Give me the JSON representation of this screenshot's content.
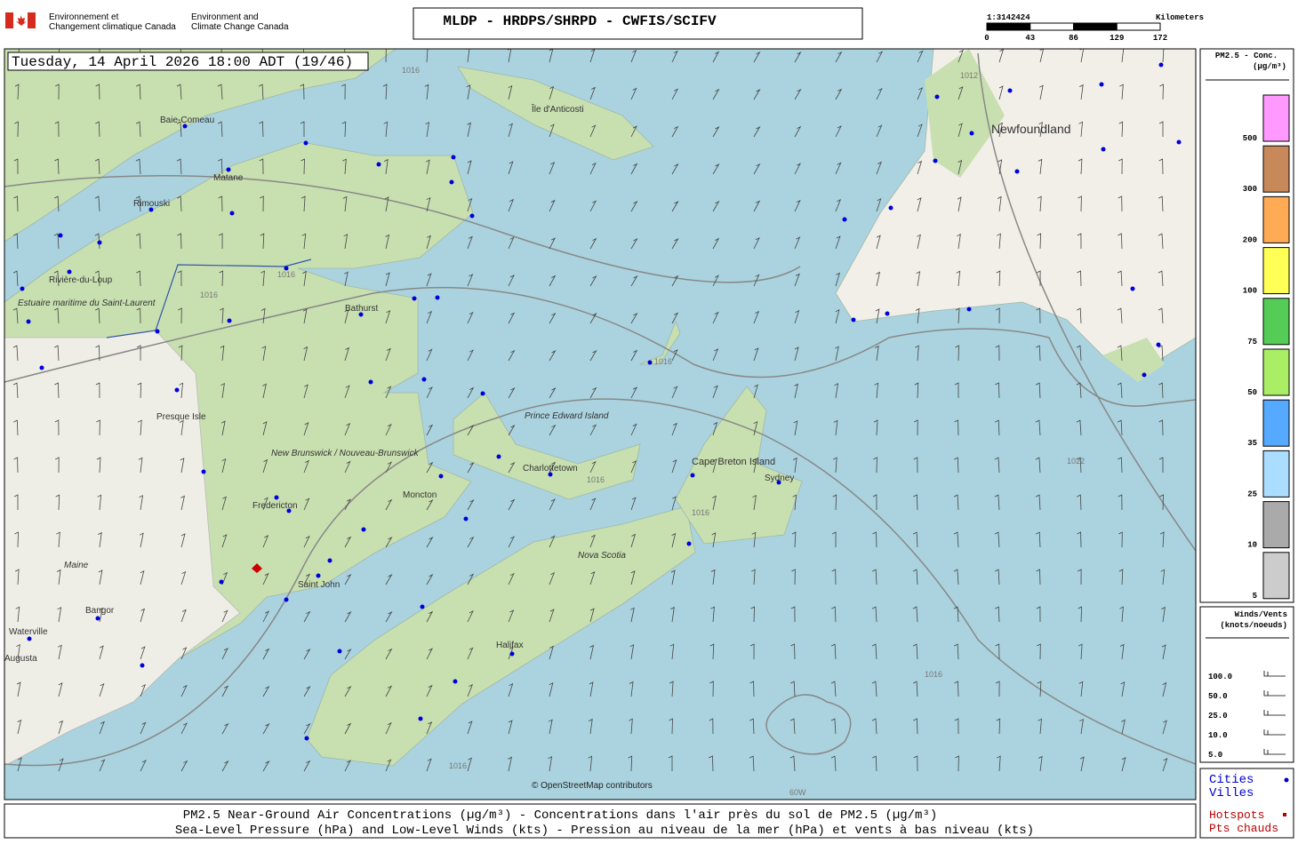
{
  "header": {
    "agency_fr": [
      "Environnement et",
      "Changement climatique Canada"
    ],
    "agency_en": [
      "Environment and",
      "Climate Change Canada"
    ],
    "title": "MLDP - HRDPS/SHRPD - CWFIS/SCIFV"
  },
  "scale": {
    "ratio": "1:3142424",
    "unit": "Kilometers",
    "ticks": [
      "0",
      "43",
      "86",
      "129",
      "172"
    ]
  },
  "map": {
    "timestamp": "Tuesday, 14 April 2026 18:00 ADT (19/46)",
    "attribution": "© OpenStreetMap contributors",
    "places": [
      "Baie-Comeau",
      "Matane",
      "Rimouski",
      "Rivière-du-Loup",
      "Estuaire maritime du Saint-Laurent",
      "Île d'Anticosti",
      "Newfoundland",
      "Bathurst",
      "Prince Edward Island",
      "Charlottetown",
      "Cape Breton Island",
      "Sydney",
      "New Brunswick / Nouveau-Brunswick",
      "Moncton",
      "Fredericton",
      "Saint John",
      "Nova Scotia",
      "Halifax",
      "Maine",
      "Bangor",
      "Waterville",
      "Augusta",
      "Presque Isle"
    ],
    "isobar_labels": [
      "1016",
      "1016",
      "1016",
      "1016",
      "1016",
      "1016",
      "1012",
      "1022",
      "1016",
      "1016",
      "60W"
    ]
  },
  "legend": {
    "title": "PM2.5 - Conc.",
    "unit": "(µg/m³)",
    "levels": [
      {
        "label": "500",
        "color": "#ff99ff"
      },
      {
        "label": "300",
        "color": "#c8895a"
      },
      {
        "label": "200",
        "color": "#ffaa55"
      },
      {
        "label": "100",
        "color": "#ffff55"
      },
      {
        "label": "75",
        "color": "#55cc55"
      },
      {
        "label": "50",
        "color": "#aaee66"
      },
      {
        "label": "35",
        "color": "#55aaff"
      },
      {
        "label": "25",
        "color": "#aaddff"
      },
      {
        "label": "10",
        "color": "#aaaaaa"
      },
      {
        "label": "5",
        "color": "#cccccc"
      }
    ]
  },
  "wind_legend": {
    "title": "Winds/Vents",
    "unit": "(knots/noeuds)",
    "entries": [
      "100.0",
      "50.0",
      "25.0",
      "10.0",
      "5.0"
    ]
  },
  "symbols": {
    "cities": [
      "Cities",
      "Villes"
    ],
    "hotspots": [
      "Hotspots",
      "Pts chauds"
    ]
  },
  "footer": {
    "line1": "PM2.5 Near-Ground Air Concentrations (µg/m³) - Concentrations dans l'air près du sol de PM2.5 (µg/m³)",
    "line2": "Sea-Level Pressure (hPa) and Low-Level Winds (kts) - Pression au niveau de la mer (hPa) et vents à bas niveau (kts)"
  }
}
